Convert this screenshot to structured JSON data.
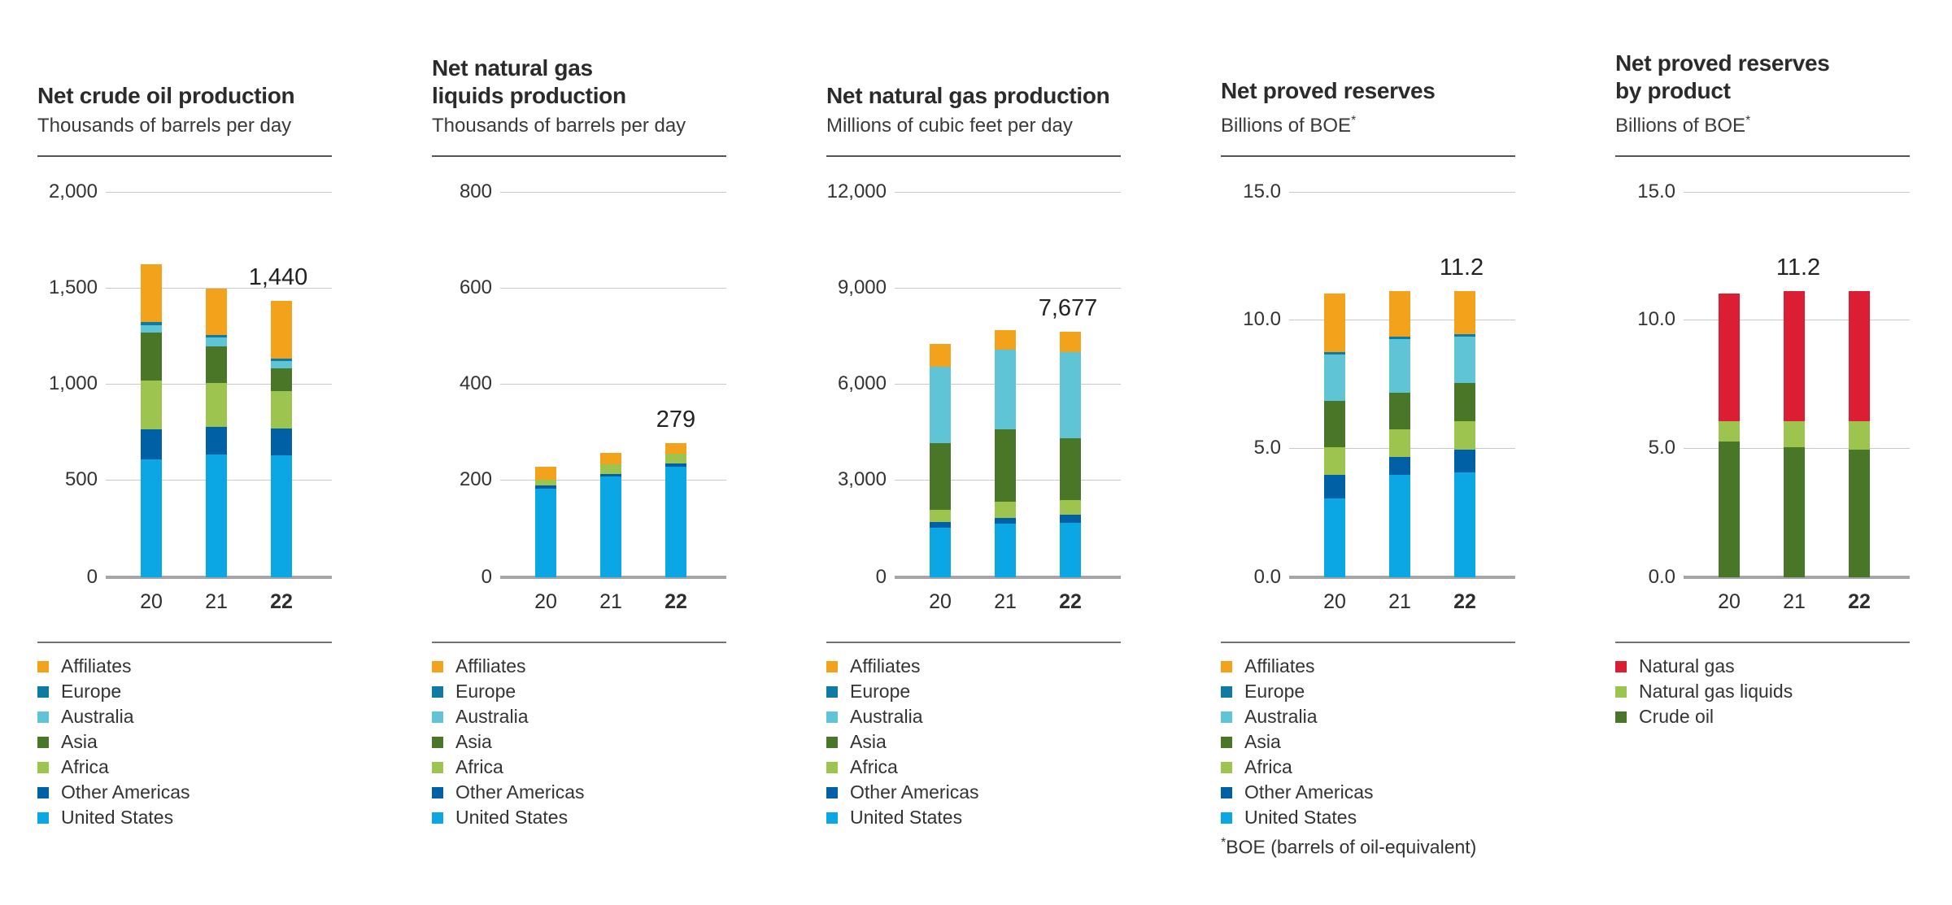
{
  "palette": {
    "affiliates": "#F2A21B",
    "europe": "#0E7BA3",
    "australia": "#5FC4D6",
    "asia": "#4A7727",
    "africa": "#9CC44E",
    "other_americas": "#0060A5",
    "united_states": "#0AA7E4",
    "natural_gas": "#DC1E35",
    "natural_gas_liquids": "#9CC44E",
    "crude_oil": "#4A7727",
    "grid_line": "#c9c9c9",
    "axis_line": "#a6a6a8",
    "title_rule": "#545454",
    "legend_rule": "#737373"
  },
  "chart_data": [
    {
      "type": "bar",
      "stacked": true,
      "title_lines": [
        "Net crude oil production"
      ],
      "subtitle": "Thousands of barrels per day",
      "subtitle_sup": "",
      "categories": [
        "20",
        "21",
        "22"
      ],
      "ylim": [
        0,
        2000
      ],
      "grid": true,
      "legend_position": "bottom",
      "yticks": [
        {
          "label": "2,000",
          "value": 2000
        },
        {
          "label": "1,500",
          "value": 1500
        },
        {
          "label": "1,000",
          "value": 1000
        },
        {
          "label": "500",
          "value": 500
        },
        {
          "label": "0",
          "value": 0
        }
      ],
      "series": [
        {
          "name": "United States",
          "color_key": "united_states",
          "values": [
            615,
            640,
            637
          ]
        },
        {
          "name": "Other Americas",
          "color_key": "other_americas",
          "values": [
            155,
            145,
            138
          ]
        },
        {
          "name": "Africa",
          "color_key": "africa",
          "values": [
            255,
            230,
            197
          ]
        },
        {
          "name": "Asia",
          "color_key": "asia",
          "values": [
            250,
            190,
            117
          ]
        },
        {
          "name": "Australia",
          "color_key": "australia",
          "values": [
            40,
            45,
            38
          ]
        },
        {
          "name": "Europe",
          "color_key": "europe",
          "values": [
            16,
            15,
            13
          ]
        },
        {
          "name": "Affiliates",
          "color_key": "affiliates",
          "values": [
            299,
            240,
            300
          ]
        }
      ],
      "annotation": {
        "text": "1,440",
        "category_index": 2,
        "dx": -4
      },
      "legend": [
        {
          "label": "Affiliates",
          "color_key": "affiliates"
        },
        {
          "label": "Europe",
          "color_key": "europe"
        },
        {
          "label": "Australia",
          "color_key": "australia"
        },
        {
          "label": "Asia",
          "color_key": "asia"
        },
        {
          "label": "Africa",
          "color_key": "africa"
        },
        {
          "label": "Other Americas",
          "color_key": "other_americas"
        },
        {
          "label": "United States",
          "color_key": "united_states"
        }
      ],
      "footnote": null
    },
    {
      "type": "bar",
      "stacked": true,
      "title_lines": [
        "Net natural gas",
        "liquids production"
      ],
      "subtitle": "Thousands of barrels per day",
      "subtitle_sup": "",
      "categories": [
        "20",
        "21",
        "22"
      ],
      "ylim": [
        0,
        800
      ],
      "grid": true,
      "legend_position": "bottom",
      "yticks": [
        {
          "label": "800",
          "value": 800
        },
        {
          "label": "600",
          "value": 600
        },
        {
          "label": "400",
          "value": 400
        },
        {
          "label": "200",
          "value": 200
        },
        {
          "label": "0",
          "value": 0
        }
      ],
      "series": [
        {
          "name": "United States",
          "color_key": "united_states",
          "values": [
            185,
            210,
            230
          ]
        },
        {
          "name": "Other Americas",
          "color_key": "other_americas",
          "values": [
            7,
            6,
            7
          ]
        },
        {
          "name": "Africa",
          "color_key": "africa",
          "values": [
            12,
            20,
            20
          ]
        },
        {
          "name": "Asia",
          "color_key": "asia",
          "values": [
            0,
            0,
            0
          ]
        },
        {
          "name": "Australia",
          "color_key": "australia",
          "values": [
            0,
            0,
            0
          ]
        },
        {
          "name": "Europe",
          "color_key": "europe",
          "values": [
            0,
            0,
            0
          ]
        },
        {
          "name": "Affiliates",
          "color_key": "affiliates",
          "values": [
            27,
            23,
            22
          ]
        }
      ],
      "annotation": {
        "text": "279",
        "category_index": 2,
        "dx": 0
      },
      "legend": [
        {
          "label": "Affiliates",
          "color_key": "affiliates"
        },
        {
          "label": "Europe",
          "color_key": "europe"
        },
        {
          "label": "Australia",
          "color_key": "australia"
        },
        {
          "label": "Asia",
          "color_key": "asia"
        },
        {
          "label": "Africa",
          "color_key": "africa"
        },
        {
          "label": "Other Americas",
          "color_key": "other_americas"
        },
        {
          "label": "United States",
          "color_key": "united_states"
        }
      ],
      "footnote": null
    },
    {
      "type": "bar",
      "stacked": true,
      "title_lines": [
        "Net natural gas production"
      ],
      "subtitle": "Millions of cubic feet per day",
      "subtitle_sup": "",
      "categories": [
        "20",
        "21",
        "22"
      ],
      "ylim": [
        0,
        12000
      ],
      "grid": true,
      "legend_position": "bottom",
      "yticks": [
        {
          "label": "12,000",
          "value": 12000
        },
        {
          "label": "9,000",
          "value": 9000
        },
        {
          "label": "6,000",
          "value": 6000
        },
        {
          "label": "3,000",
          "value": 3000
        },
        {
          "label": "0",
          "value": 0
        }
      ],
      "series": [
        {
          "name": "United States",
          "color_key": "united_states",
          "values": [
            1555,
            1685,
            1693
          ]
        },
        {
          "name": "Other Americas",
          "color_key": "other_americas",
          "values": [
            170,
            170,
            257
          ]
        },
        {
          "name": "Africa",
          "color_key": "africa",
          "values": [
            385,
            510,
            470
          ]
        },
        {
          "name": "Asia",
          "color_key": "asia",
          "values": [
            2085,
            2270,
            1924
          ]
        },
        {
          "name": "Australia",
          "color_key": "australia",
          "values": [
            2380,
            2475,
            2693
          ]
        },
        {
          "name": "Europe",
          "color_key": "europe",
          "values": [
            0,
            0,
            0
          ]
        },
        {
          "name": "Affiliates",
          "color_key": "affiliates",
          "values": [
            725,
            630,
            640
          ]
        }
      ],
      "annotation": {
        "text": "7,677",
        "category_index": 2,
        "dx": -3
      },
      "legend": [
        {
          "label": "Affiliates",
          "color_key": "affiliates"
        },
        {
          "label": "Europe",
          "color_key": "europe"
        },
        {
          "label": "Australia",
          "color_key": "australia"
        },
        {
          "label": "Asia",
          "color_key": "asia"
        },
        {
          "label": "Africa",
          "color_key": "africa"
        },
        {
          "label": "Other Americas",
          "color_key": "other_americas"
        },
        {
          "label": "United States",
          "color_key": "united_states"
        }
      ],
      "footnote": null
    },
    {
      "type": "bar",
      "stacked": true,
      "title_lines": [
        "Net proved reserves"
      ],
      "subtitle": "Billions of BOE",
      "subtitle_sup": "*",
      "categories": [
        "20",
        "21",
        "22"
      ],
      "ylim": [
        0,
        15
      ],
      "grid": true,
      "legend_position": "bottom",
      "yticks": [
        {
          "label": "15.0",
          "value": 15
        },
        {
          "label": "10.0",
          "value": 10
        },
        {
          "label": "5.0",
          "value": 5
        },
        {
          "label": "0.0",
          "value": 0
        }
      ],
      "series": [
        {
          "name": "United States",
          "color_key": "united_states",
          "values": [
            3.1,
            4.0,
            4.1
          ]
        },
        {
          "name": "Other Americas",
          "color_key": "other_americas",
          "values": [
            0.9,
            0.7,
            0.9
          ]
        },
        {
          "name": "Africa",
          "color_key": "africa",
          "values": [
            1.1,
            1.1,
            1.1
          ]
        },
        {
          "name": "Asia",
          "color_key": "asia",
          "values": [
            1.8,
            1.4,
            1.5
          ]
        },
        {
          "name": "Australia",
          "color_key": "australia",
          "values": [
            1.8,
            2.1,
            1.8
          ]
        },
        {
          "name": "Europe",
          "color_key": "europe",
          "values": [
            0.1,
            0.1,
            0.1
          ]
        },
        {
          "name": "Affiliates",
          "color_key": "affiliates",
          "values": [
            2.3,
            1.8,
            1.7
          ]
        }
      ],
      "annotation": {
        "text": "11.2",
        "category_index": 2,
        "dx": -4
      },
      "legend": [
        {
          "label": "Affiliates",
          "color_key": "affiliates"
        },
        {
          "label": "Europe",
          "color_key": "europe"
        },
        {
          "label": "Australia",
          "color_key": "australia"
        },
        {
          "label": "Asia",
          "color_key": "asia"
        },
        {
          "label": "Africa",
          "color_key": "africa"
        },
        {
          "label": "Other Americas",
          "color_key": "other_americas"
        },
        {
          "label": "United States",
          "color_key": "united_states"
        }
      ],
      "footnote": {
        "sup": "*",
        "text": "BOE (barrels of oil-equivalent)"
      }
    },
    {
      "type": "bar",
      "stacked": true,
      "title_lines": [
        "Net proved reserves",
        "by product"
      ],
      "subtitle": "Billions of BOE",
      "subtitle_sup": "*",
      "categories": [
        "20",
        "21",
        "22"
      ],
      "ylim": [
        0,
        15
      ],
      "grid": true,
      "legend_position": "bottom",
      "yticks": [
        {
          "label": "15.0",
          "value": 15
        },
        {
          "label": "10.0",
          "value": 10
        },
        {
          "label": "5.0",
          "value": 5
        },
        {
          "label": "0.0",
          "value": 0
        }
      ],
      "series": [
        {
          "name": "Crude oil",
          "color_key": "crude_oil",
          "values": [
            5.3,
            5.1,
            5.0
          ]
        },
        {
          "name": "Natural gas liquids",
          "color_key": "natural_gas_liquids",
          "values": [
            0.8,
            1.0,
            1.1
          ]
        },
        {
          "name": "Natural gas",
          "color_key": "natural_gas",
          "values": [
            5.0,
            5.1,
            5.1
          ]
        }
      ],
      "annotation": {
        "text": "11.2",
        "category_index": 2,
        "dx": -75
      },
      "legend": [
        {
          "label": "Natural gas",
          "color_key": "natural_gas"
        },
        {
          "label": "Natural gas liquids",
          "color_key": "natural_gas_liquids"
        },
        {
          "label": "Crude oil",
          "color_key": "crude_oil"
        }
      ],
      "footnote": null
    }
  ]
}
